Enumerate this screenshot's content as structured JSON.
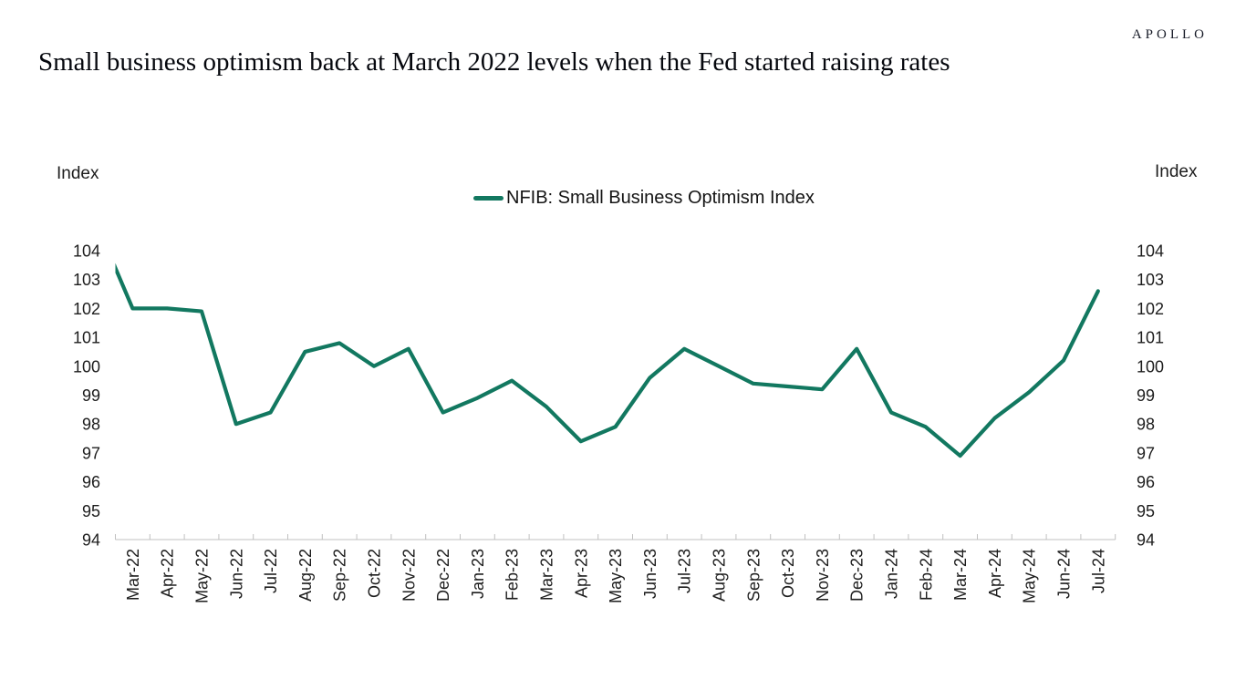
{
  "brand": {
    "logo_text": "APOLLO"
  },
  "header": {
    "title": "Small business optimism back at March 2022 levels when the Fed started raising rates"
  },
  "chart_data": {
    "type": "line",
    "title": "Small business optimism back at March 2022 levels when the Fed started raising rates",
    "legend": [
      {
        "label": "NFIB: Small Business Optimism Index",
        "color": "#127860"
      }
    ],
    "legend_position": "top-center",
    "grid": false,
    "y_axis": {
      "title_left": "Index",
      "title_right": "Index",
      "min": 94,
      "max": 104,
      "tick_step": 1,
      "ticks": [
        104,
        103,
        102,
        101,
        100,
        99,
        98,
        97,
        96,
        95,
        94
      ]
    },
    "x_axis": {
      "categories": [
        "Mar-22",
        "Apr-22",
        "May-22",
        "Jun-22",
        "Jul-22",
        "Aug-22",
        "Sep-22",
        "Oct-22",
        "Nov-22",
        "Dec-22",
        "Jan-23",
        "Feb-23",
        "Mar-23",
        "Apr-23",
        "May-23",
        "Jun-23",
        "Jul-23",
        "Aug-23",
        "Sep-23",
        "Oct-23",
        "Nov-23",
        "Dec-23",
        "Jan-24",
        "Feb-24",
        "Mar-24",
        "Apr-24",
        "May-24",
        "Jun-24",
        "Jul-24"
      ]
    },
    "series": [
      {
        "name": "NFIB: Small Business Optimism Index",
        "color": "#127860",
        "values": [
          102.0,
          102.0,
          101.9,
          98.0,
          98.4,
          100.5,
          100.8,
          100.0,
          100.6,
          98.4,
          98.9,
          99.5,
          98.6,
          97.4,
          97.9,
          99.6,
          100.6,
          100.0,
          99.4,
          99.3,
          99.2,
          100.6,
          98.4,
          97.9,
          96.9,
          98.2,
          99.1,
          100.2,
          102.6
        ],
        "lead_in_value": 104.8
      }
    ],
    "axis_color": "#c0c0c0",
    "tick_label_color": "#1d1d1d"
  }
}
